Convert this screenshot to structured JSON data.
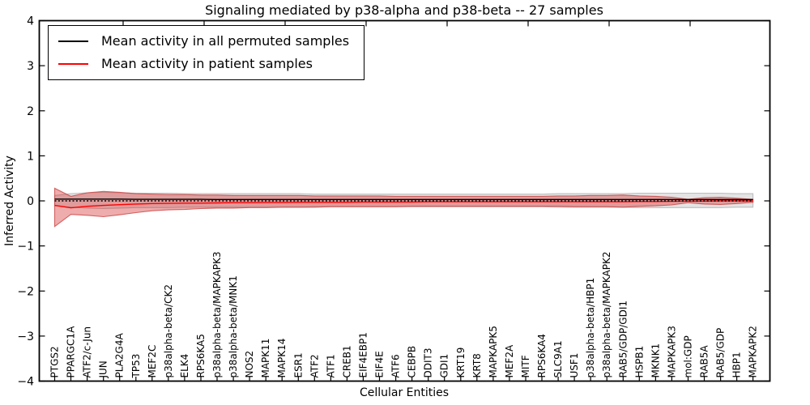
{
  "chart_data": {
    "type": "line",
    "title": "Signaling mediated by p38-alpha and p38-beta -- 27 samples",
    "xlabel": "Cellular Entities",
    "ylabel": "Inferred Activity",
    "ylim": [
      -4,
      4
    ],
    "yticks": [
      4,
      3,
      2,
      1,
      0,
      -1,
      -2,
      -3,
      -4
    ],
    "grid": false,
    "legend_position": "upper left",
    "categories": [
      "PTGS2",
      "PPARGC1A",
      "ATF2/c-Jun",
      "JUN",
      "PLA2G4A",
      "TP53",
      "MEF2C",
      "p38alpha-beta/CK2",
      "ELK4",
      "RPS6KA5",
      "p38alpha-beta/MAPKAPK3",
      "p38alpha-beta/MNK1",
      "NOS2",
      "MAPK11",
      "MAPK14",
      "ESR1",
      "ATF2",
      "ATF1",
      "CREB1",
      "EIF4EBP1",
      "EIF4E",
      "ATF6",
      "CEBPB",
      "DDIT3",
      "GDI1",
      "KRT19",
      "KRT8",
      "MAPKAPK5",
      "MEF2A",
      "MITF",
      "RPS6KA4",
      "SLC9A1",
      "USF1",
      "p38alpha-beta/HBP1",
      "p38alpha-beta/MAPKAPK2",
      "RAB5/GDP/GDI1",
      "HSPB1",
      "MKNK1",
      "MAPKAPK3",
      "mol:GDP",
      "RAB5A",
      "RAB5/GDP",
      "HBP1",
      "MAPKAPK2"
    ],
    "reference_line": {
      "y": 0,
      "style": "dotted",
      "color": "#000000"
    },
    "series": [
      {
        "name": "Mean activity in all permuted samples",
        "color": "#000000",
        "line_style": "solid",
        "values": [
          0.04,
          0.04,
          0.04,
          0.04,
          0.04,
          0.035,
          0.035,
          0.035,
          0.035,
          0.035,
          0.03,
          0.03,
          0.03,
          0.03,
          0.03,
          0.03,
          0.03,
          0.03,
          0.03,
          0.03,
          0.03,
          0.03,
          0.03,
          0.03,
          0.03,
          0.03,
          0.03,
          0.03,
          0.03,
          0.03,
          0.03,
          0.03,
          0.03,
          0.03,
          0.03,
          0.03,
          0.03,
          0.03,
          0.03,
          0.03,
          0.03,
          0.03,
          0.03,
          0.03
        ],
        "band": {
          "upper": [
            0.12,
            0.16,
            0.18,
            0.19,
            0.18,
            0.17,
            0.17,
            0.17,
            0.16,
            0.16,
            0.16,
            0.16,
            0.16,
            0.16,
            0.16,
            0.16,
            0.15,
            0.15,
            0.15,
            0.15,
            0.15,
            0.15,
            0.15,
            0.15,
            0.15,
            0.15,
            0.15,
            0.15,
            0.15,
            0.15,
            0.15,
            0.16,
            0.16,
            0.16,
            0.16,
            0.16,
            0.17,
            0.17,
            0.17,
            0.17,
            0.17,
            0.17,
            0.16,
            0.16
          ],
          "lower": [
            -0.1,
            -0.14,
            -0.16,
            -0.17,
            -0.16,
            -0.15,
            -0.15,
            -0.15,
            -0.14,
            -0.14,
            -0.14,
            -0.14,
            -0.14,
            -0.14,
            -0.14,
            -0.14,
            -0.13,
            -0.13,
            -0.13,
            -0.13,
            -0.13,
            -0.13,
            -0.13,
            -0.13,
            -0.13,
            -0.13,
            -0.13,
            -0.13,
            -0.13,
            -0.13,
            -0.13,
            -0.14,
            -0.14,
            -0.14,
            -0.14,
            -0.14,
            -0.15,
            -0.15,
            -0.15,
            -0.15,
            -0.15,
            -0.15,
            -0.14,
            -0.14
          ],
          "fill_color": "#aaaaaa",
          "fill_opacity": 0.32,
          "edge_color": "#999999",
          "edge_opacity": 0.6
        }
      },
      {
        "name": "Mean activity in patient samples",
        "color": "#ff0000",
        "line_style": "solid",
        "values": [
          -0.1,
          -0.155,
          -0.12,
          -0.1,
          -0.085,
          -0.07,
          -0.06,
          -0.055,
          -0.05,
          -0.05,
          -0.045,
          -0.04,
          -0.04,
          -0.035,
          -0.035,
          -0.03,
          -0.03,
          -0.03,
          -0.03,
          -0.025,
          -0.025,
          -0.025,
          -0.025,
          -0.02,
          -0.02,
          -0.02,
          -0.02,
          -0.02,
          -0.02,
          -0.02,
          -0.02,
          -0.02,
          -0.02,
          -0.02,
          -0.02,
          -0.02,
          -0.015,
          -0.015,
          -0.01,
          -0.005,
          -0.005,
          0.0,
          0.0,
          0.0
        ],
        "band": {
          "upper": [
            0.28,
            0.1,
            0.18,
            0.21,
            0.19,
            0.16,
            0.15,
            0.14,
            0.14,
            0.13,
            0.13,
            0.12,
            0.12,
            0.12,
            0.12,
            0.12,
            0.11,
            0.11,
            0.11,
            0.11,
            0.11,
            0.1,
            0.1,
            0.1,
            0.1,
            0.1,
            0.1,
            0.1,
            0.1,
            0.1,
            0.1,
            0.11,
            0.11,
            0.12,
            0.12,
            0.13,
            0.11,
            0.1,
            0.08,
            0.035,
            0.07,
            0.08,
            0.06,
            0.03
          ],
          "lower": [
            -0.57,
            -0.3,
            -0.32,
            -0.35,
            -0.31,
            -0.26,
            -0.22,
            -0.2,
            -0.19,
            -0.17,
            -0.16,
            -0.16,
            -0.15,
            -0.15,
            -0.14,
            -0.14,
            -0.14,
            -0.13,
            -0.13,
            -0.13,
            -0.13,
            -0.13,
            -0.12,
            -0.12,
            -0.12,
            -0.12,
            -0.12,
            -0.12,
            -0.12,
            -0.12,
            -0.12,
            -0.12,
            -0.13,
            -0.13,
            -0.13,
            -0.14,
            -0.12,
            -0.11,
            -0.09,
            -0.04,
            -0.07,
            -0.08,
            -0.06,
            -0.03
          ],
          "fill_color": "#d83030",
          "fill_opacity": 0.4,
          "edge_color": "#c83a3a",
          "edge_opacity": 0.75
        }
      }
    ]
  }
}
